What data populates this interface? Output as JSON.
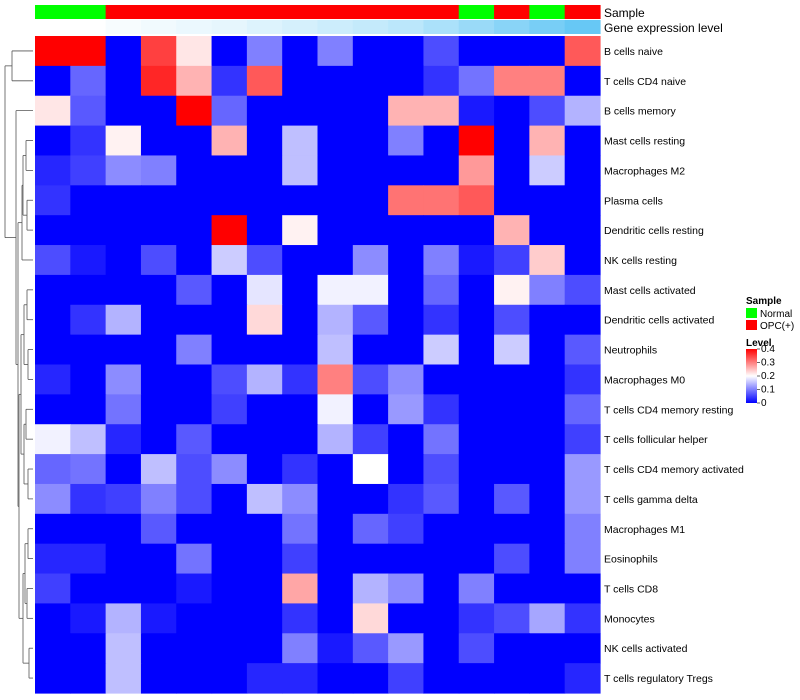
{
  "chart_data": {
    "type": "heatmap",
    "annotation_labels": [
      "Sample",
      "Gene expression level"
    ],
    "sample_groups": [
      "Normal",
      "Normal",
      "OPC(+)",
      "OPC(+)",
      "OPC(+)",
      "OPC(+)",
      "OPC(+)",
      "OPC(+)",
      "OPC(+)",
      "OPC(+)",
      "OPC(+)",
      "OPC(+)",
      "Normal",
      "OPC(+)",
      "Normal",
      "OPC(+)"
    ],
    "expression_level": [
      0.0,
      0.0,
      0.05,
      0.08,
      0.12,
      0.15,
      0.2,
      0.25,
      0.3,
      0.35,
      0.4,
      0.5,
      0.6,
      0.7,
      0.8,
      0.9
    ],
    "rows": [
      "B cells naive",
      "T cells CD4 naive",
      "B cells memory",
      "Mast cells resting",
      "Macrophages M2",
      "Plasma cells",
      "Dendritic cells resting",
      "NK cells resting",
      "Mast cells activated",
      "Dendritic cells activated",
      "Neutrophils",
      "Macrophages M0",
      "T cells CD4 memory resting",
      "T cells follicular helper",
      "T cells CD4 memory activated",
      "T cells gamma delta",
      "Macrophages M1",
      "Eosinophils",
      "T cells CD8",
      "Monocytes",
      "NK cells activated",
      "T cells regulatory  Tregs"
    ],
    "values": [
      [
        0.4,
        0.4,
        0.0,
        0.35,
        0.22,
        0.0,
        0.1,
        0.0,
        0.1,
        0.0,
        0.0,
        0.06,
        0.0,
        0.0,
        0.0,
        0.33
      ],
      [
        0.0,
        0.08,
        0.0,
        0.37,
        0.26,
        0.04,
        0.33,
        0.0,
        0.0,
        0.0,
        0.0,
        0.04,
        0.09,
        0.3,
        0.3,
        0.0
      ],
      [
        0.22,
        0.07,
        0.0,
        0.0,
        0.4,
        0.08,
        0.0,
        0.0,
        0.0,
        0.0,
        0.26,
        0.26,
        0.02,
        0.0,
        0.06,
        0.14
      ],
      [
        0.0,
        0.04,
        0.21,
        0.0,
        0.0,
        0.26,
        0.0,
        0.15,
        0.0,
        0.0,
        0.1,
        0.0,
        0.4,
        0.0,
        0.26,
        0.0
      ],
      [
        0.03,
        0.05,
        0.11,
        0.1,
        0.0,
        0.0,
        0.0,
        0.15,
        0.0,
        0.0,
        0.0,
        0.0,
        0.28,
        0.0,
        0.16,
        0.0
      ],
      [
        0.04,
        0.0,
        0.0,
        0.0,
        0.0,
        0.0,
        0.0,
        0.0,
        0.0,
        0.0,
        0.31,
        0.31,
        0.33,
        0.0,
        0.0,
        0.0
      ],
      [
        0.0,
        0.0,
        0.0,
        0.0,
        0.0,
        0.4,
        0.0,
        0.21,
        0.0,
        0.0,
        0.0,
        0.0,
        0.0,
        0.26,
        0.0,
        0.0
      ],
      [
        0.06,
        0.02,
        0.0,
        0.06,
        0.0,
        0.16,
        0.06,
        0.0,
        0.0,
        0.11,
        0.0,
        0.1,
        0.02,
        0.05,
        0.24,
        0.0
      ],
      [
        0.0,
        0.0,
        0.0,
        0.0,
        0.07,
        0.0,
        0.18,
        0.0,
        0.19,
        0.19,
        0.0,
        0.08,
        0.0,
        0.21,
        0.1,
        0.06
      ],
      [
        0.0,
        0.04,
        0.14,
        0.0,
        0.0,
        0.0,
        0.23,
        0.0,
        0.14,
        0.07,
        0.0,
        0.04,
        0.0,
        0.06,
        0.0,
        0.0
      ],
      [
        0.0,
        0.0,
        0.0,
        0.0,
        0.1,
        0.0,
        0.0,
        0.0,
        0.15,
        0.0,
        0.0,
        0.16,
        0.0,
        0.16,
        0.0,
        0.07
      ],
      [
        0.03,
        0.0,
        0.11,
        0.0,
        0.0,
        0.06,
        0.14,
        0.04,
        0.3,
        0.06,
        0.11,
        0.0,
        0.0,
        0.0,
        0.0,
        0.04
      ],
      [
        0.0,
        0.0,
        0.09,
        0.0,
        0.0,
        0.05,
        0.0,
        0.0,
        0.19,
        0.0,
        0.12,
        0.04,
        0.0,
        0.0,
        0.0,
        0.08
      ],
      [
        0.19,
        0.15,
        0.03,
        0.0,
        0.07,
        0.0,
        0.0,
        0.0,
        0.14,
        0.05,
        0.0,
        0.09,
        0.0,
        0.0,
        0.0,
        0.05
      ],
      [
        0.08,
        0.09,
        0.0,
        0.15,
        0.06,
        0.11,
        0.0,
        0.04,
        0.0,
        0.2,
        0.0,
        0.06,
        0.0,
        0.0,
        0.0,
        0.12
      ],
      [
        0.11,
        0.04,
        0.05,
        0.1,
        0.06,
        0.0,
        0.15,
        0.11,
        0.0,
        0.0,
        0.04,
        0.07,
        0.0,
        0.07,
        0.0,
        0.12
      ],
      [
        0.0,
        0.0,
        0.0,
        0.07,
        0.0,
        0.0,
        0.0,
        0.09,
        0.0,
        0.08,
        0.05,
        0.0,
        0.0,
        0.0,
        0.0,
        0.1
      ],
      [
        0.03,
        0.03,
        0.0,
        0.0,
        0.09,
        0.0,
        0.0,
        0.05,
        0.0,
        0.0,
        0.0,
        0.0,
        0.0,
        0.06,
        0.0,
        0.1
      ],
      [
        0.05,
        0.0,
        0.0,
        0.0,
        0.02,
        0.0,
        0.0,
        0.27,
        0.0,
        0.14,
        0.11,
        0.0,
        0.1,
        0.0,
        0.0,
        0.0
      ],
      [
        0.0,
        0.02,
        0.14,
        0.02,
        0.0,
        0.0,
        0.0,
        0.04,
        0.0,
        0.23,
        0.0,
        0.0,
        0.04,
        0.06,
        0.13,
        0.04
      ],
      [
        0.0,
        0.0,
        0.15,
        0.0,
        0.0,
        0.0,
        0.0,
        0.1,
        0.02,
        0.07,
        0.12,
        0.0,
        0.06,
        0.0,
        0.0,
        0.0
      ],
      [
        0.0,
        0.0,
        0.15,
        0.0,
        0.0,
        0.0,
        0.03,
        0.03,
        0.0,
        0.0,
        0.05,
        0.0,
        0.0,
        0.0,
        0.0,
        0.03
      ]
    ],
    "colorscale": {
      "min": 0.0,
      "max": 0.4,
      "low": "#0000ff",
      "mid": "#ffffff",
      "high": "#ff0000",
      "mid_value": 0.2
    },
    "group_colors": {
      "Normal": "#00ff00",
      "OPC(+)": "#ff0000"
    },
    "expression_colors": {
      "low": "#ffffff",
      "high": "#56c2f4"
    },
    "legend": {
      "sample_title": "Sample",
      "sample_entries": [
        {
          "label": "Normal",
          "color": "#00ff00"
        },
        {
          "label": "OPC(+)",
          "color": "#ff0000"
        }
      ],
      "level_title": "Level",
      "level_ticks": [
        "0.4",
        "0.3",
        "0.2",
        "0.1",
        "0"
      ]
    },
    "dendrogram": "row"
  }
}
